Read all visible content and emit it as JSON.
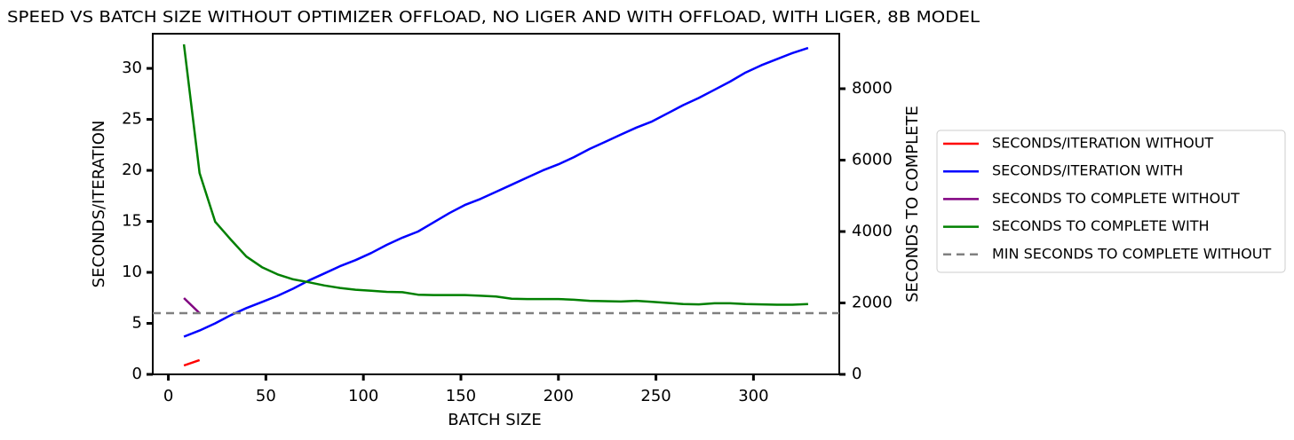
{
  "chart_data": {
    "type": "line",
    "title": "SPEED VS BATCH SIZE WITHOUT OPTIMIZER OFFLOAD, NO LIGER AND WITH OFFLOAD, WITH LIGER, 8B MODEL",
    "x_label": "BATCH SIZE",
    "y_label": "SECONDS/ITERATION",
    "y2_label": "SECONDS TO COMPLETE",
    "xlim": [
      -8,
      344
    ],
    "ylim": [
      0,
      33.4
    ],
    "y2lim": [
      0,
      9540
    ],
    "xticks": [
      0,
      50,
      100,
      150,
      200,
      250,
      300
    ],
    "yticks": [
      0,
      5,
      10,
      15,
      20,
      25,
      30
    ],
    "y2ticks": [
      0,
      2000,
      4000,
      6000,
      8000
    ],
    "legend": "outside-right",
    "series": [
      {
        "name": "SECONDS/ITERATION WITHOUT",
        "color": "#ff0000",
        "axis": "y",
        "x": [
          8,
          16
        ],
        "values": [
          0.87,
          1.4
        ]
      },
      {
        "name": "SECONDS/ITERATION WITH",
        "color": "#0000ff",
        "axis": "y",
        "x": [
          8,
          16,
          24,
          32,
          40,
          48,
          56,
          64,
          72,
          80,
          88,
          96,
          104,
          112,
          120,
          128,
          136,
          144,
          152,
          160,
          168,
          176,
          184,
          192,
          200,
          208,
          216,
          224,
          232,
          240,
          248,
          256,
          264,
          272,
          280,
          288,
          296,
          304,
          312,
          320,
          328
        ],
        "values": [
          3.7,
          4.3,
          5.0,
          5.8,
          6.5,
          7.1,
          7.7,
          8.4,
          9.2,
          9.9,
          10.6,
          11.2,
          11.9,
          12.7,
          13.4,
          14.0,
          14.9,
          15.8,
          16.6,
          17.2,
          17.9,
          18.6,
          19.3,
          20.0,
          20.6,
          21.3,
          22.1,
          22.8,
          23.5,
          24.2,
          24.8,
          25.6,
          26.4,
          27.1,
          27.9,
          28.7,
          29.6,
          30.3,
          30.9,
          31.5,
          32.0
        ]
      },
      {
        "name": "SECONDS TO COMPLETE WITHOUT",
        "color": "#800080",
        "axis": "y2",
        "x": [
          8,
          16
        ],
        "values": [
          2137,
          1714
        ]
      },
      {
        "name": "SECONDS TO COMPLETE WITH",
        "color": "#008000",
        "axis": "y2",
        "x": [
          8,
          16,
          24,
          32,
          40,
          48,
          56,
          64,
          72,
          80,
          88,
          96,
          104,
          112,
          120,
          128,
          136,
          144,
          152,
          160,
          168,
          176,
          184,
          192,
          200,
          208,
          216,
          224,
          232,
          240,
          248,
          256,
          264,
          272,
          280,
          288,
          296,
          304,
          312,
          320,
          328
        ],
        "values": [
          9242,
          5640,
          4273,
          3776,
          3300,
          3000,
          2800,
          2660,
          2580,
          2490,
          2420,
          2370,
          2340,
          2310,
          2300,
          2230,
          2220,
          2220,
          2220,
          2200,
          2180,
          2120,
          2110,
          2110,
          2110,
          2090,
          2060,
          2050,
          2040,
          2060,
          2030,
          2000,
          1970,
          1960,
          1990,
          1990,
          1970,
          1960,
          1950,
          1950,
          1970
        ]
      },
      {
        "name": "MIN SECONDS TO COMPLETE WITHOUT",
        "color": "#808080",
        "axis": "y2",
        "style": "hline-dashed",
        "values": [
          1714
        ]
      }
    ]
  }
}
